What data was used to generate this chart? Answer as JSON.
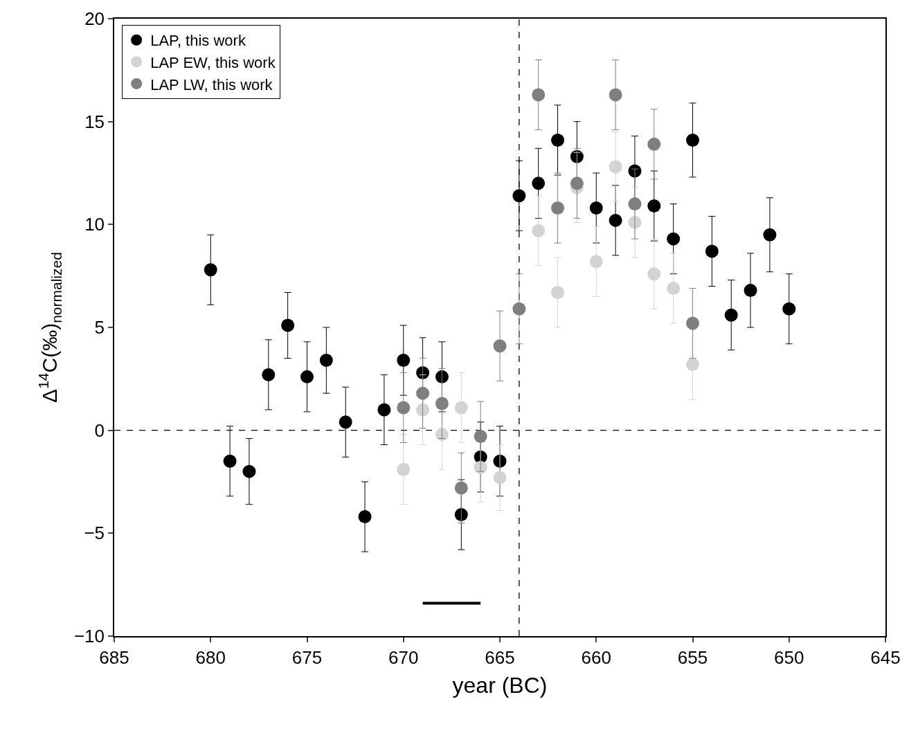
{
  "chart_data": {
    "type": "scatter",
    "xlabel": "year (BC)",
    "ylabel": "Δ$^{14}$C(‰)$_{normalized}$",
    "xlim": [
      685,
      645
    ],
    "xticks": [
      685,
      680,
      675,
      670,
      665,
      660,
      655,
      650,
      645
    ],
    "ylim": [
      -10,
      20
    ],
    "yticks": [
      -10,
      -5,
      0,
      5,
      10,
      15,
      20
    ],
    "grid": false,
    "legend": "top left",
    "marker": "circle",
    "ref_lines": [
      {
        "axis": "x",
        "value": 664,
        "color": "#000000",
        "line_style": "dashed"
      },
      {
        "axis": "y",
        "value": 0,
        "color": "#000000",
        "line_style": "dashed"
      }
    ],
    "series": [
      {
        "name": "LAP, this work",
        "color": "#000000",
        "x": [
          680,
          679,
          678,
          677,
          676,
          675,
          674,
          673,
          672,
          671,
          670,
          669,
          668,
          667,
          666,
          665,
          664,
          663,
          662,
          661,
          660,
          659,
          658,
          657,
          656,
          655,
          654,
          653,
          652,
          651,
          650
        ],
        "values": [
          7.8,
          -1.5,
          -2.0,
          2.7,
          5.1,
          2.6,
          3.4,
          0.4,
          -4.2,
          1.0,
          3.4,
          2.8,
          2.6,
          -4.1,
          -1.3,
          -1.5,
          11.4,
          12.0,
          14.1,
          13.3,
          10.8,
          10.2,
          12.6,
          10.9,
          9.3,
          14.1,
          8.7,
          5.6,
          6.8,
          9.5,
          5.9
        ],
        "errors": [
          1.7,
          1.7,
          1.6,
          1.7,
          1.6,
          1.7,
          1.6,
          1.7,
          1.7,
          1.7,
          1.7,
          1.7,
          1.7,
          1.7,
          1.7,
          1.7,
          1.7,
          1.7,
          1.7,
          1.7,
          1.7,
          1.7,
          1.7,
          1.7,
          1.7,
          1.8,
          1.7,
          1.7,
          1.8,
          1.8,
          1.7
        ]
      },
      {
        "name": "LAP EW, this work",
        "color": "#d3d3d3",
        "x": [
          670,
          669,
          668,
          667,
          666,
          665,
          664,
          663,
          662,
          661,
          660,
          659,
          658,
          657,
          656,
          655
        ],
        "values": [
          -1.9,
          1.0,
          -0.2,
          1.1,
          -1.8,
          -2.3,
          null,
          9.7,
          6.7,
          11.8,
          8.2,
          12.8,
          10.1,
          7.6,
          6.9,
          3.2
        ],
        "errors": [
          1.7,
          1.7,
          1.7,
          1.7,
          1.7,
          1.6,
          null,
          1.7,
          1.7,
          1.7,
          1.7,
          1.7,
          1.7,
          1.7,
          1.7,
          1.7
        ]
      },
      {
        "name": "LAP LW, this work",
        "color": "#7f7f7f",
        "x": [
          670,
          669,
          668,
          667,
          666,
          665,
          664,
          663,
          662,
          661,
          659,
          658,
          657,
          655
        ],
        "values": [
          1.1,
          1.8,
          1.3,
          -2.8,
          -0.3,
          4.1,
          5.9,
          16.3,
          10.8,
          12.0,
          16.3,
          11.0,
          13.9,
          5.2
        ],
        "errors": [
          1.7,
          1.7,
          1.7,
          1.7,
          1.7,
          1.7,
          1.7,
          1.7,
          1.7,
          1.7,
          1.7,
          1.7,
          1.7,
          1.7
        ]
      },
      {
        "type": "line",
        "color": "#000000",
        "x": [
          669,
          666
        ],
        "values": [
          -8.4,
          -8.4
        ],
        "line_style": "solid",
        "marker": "none"
      }
    ]
  }
}
